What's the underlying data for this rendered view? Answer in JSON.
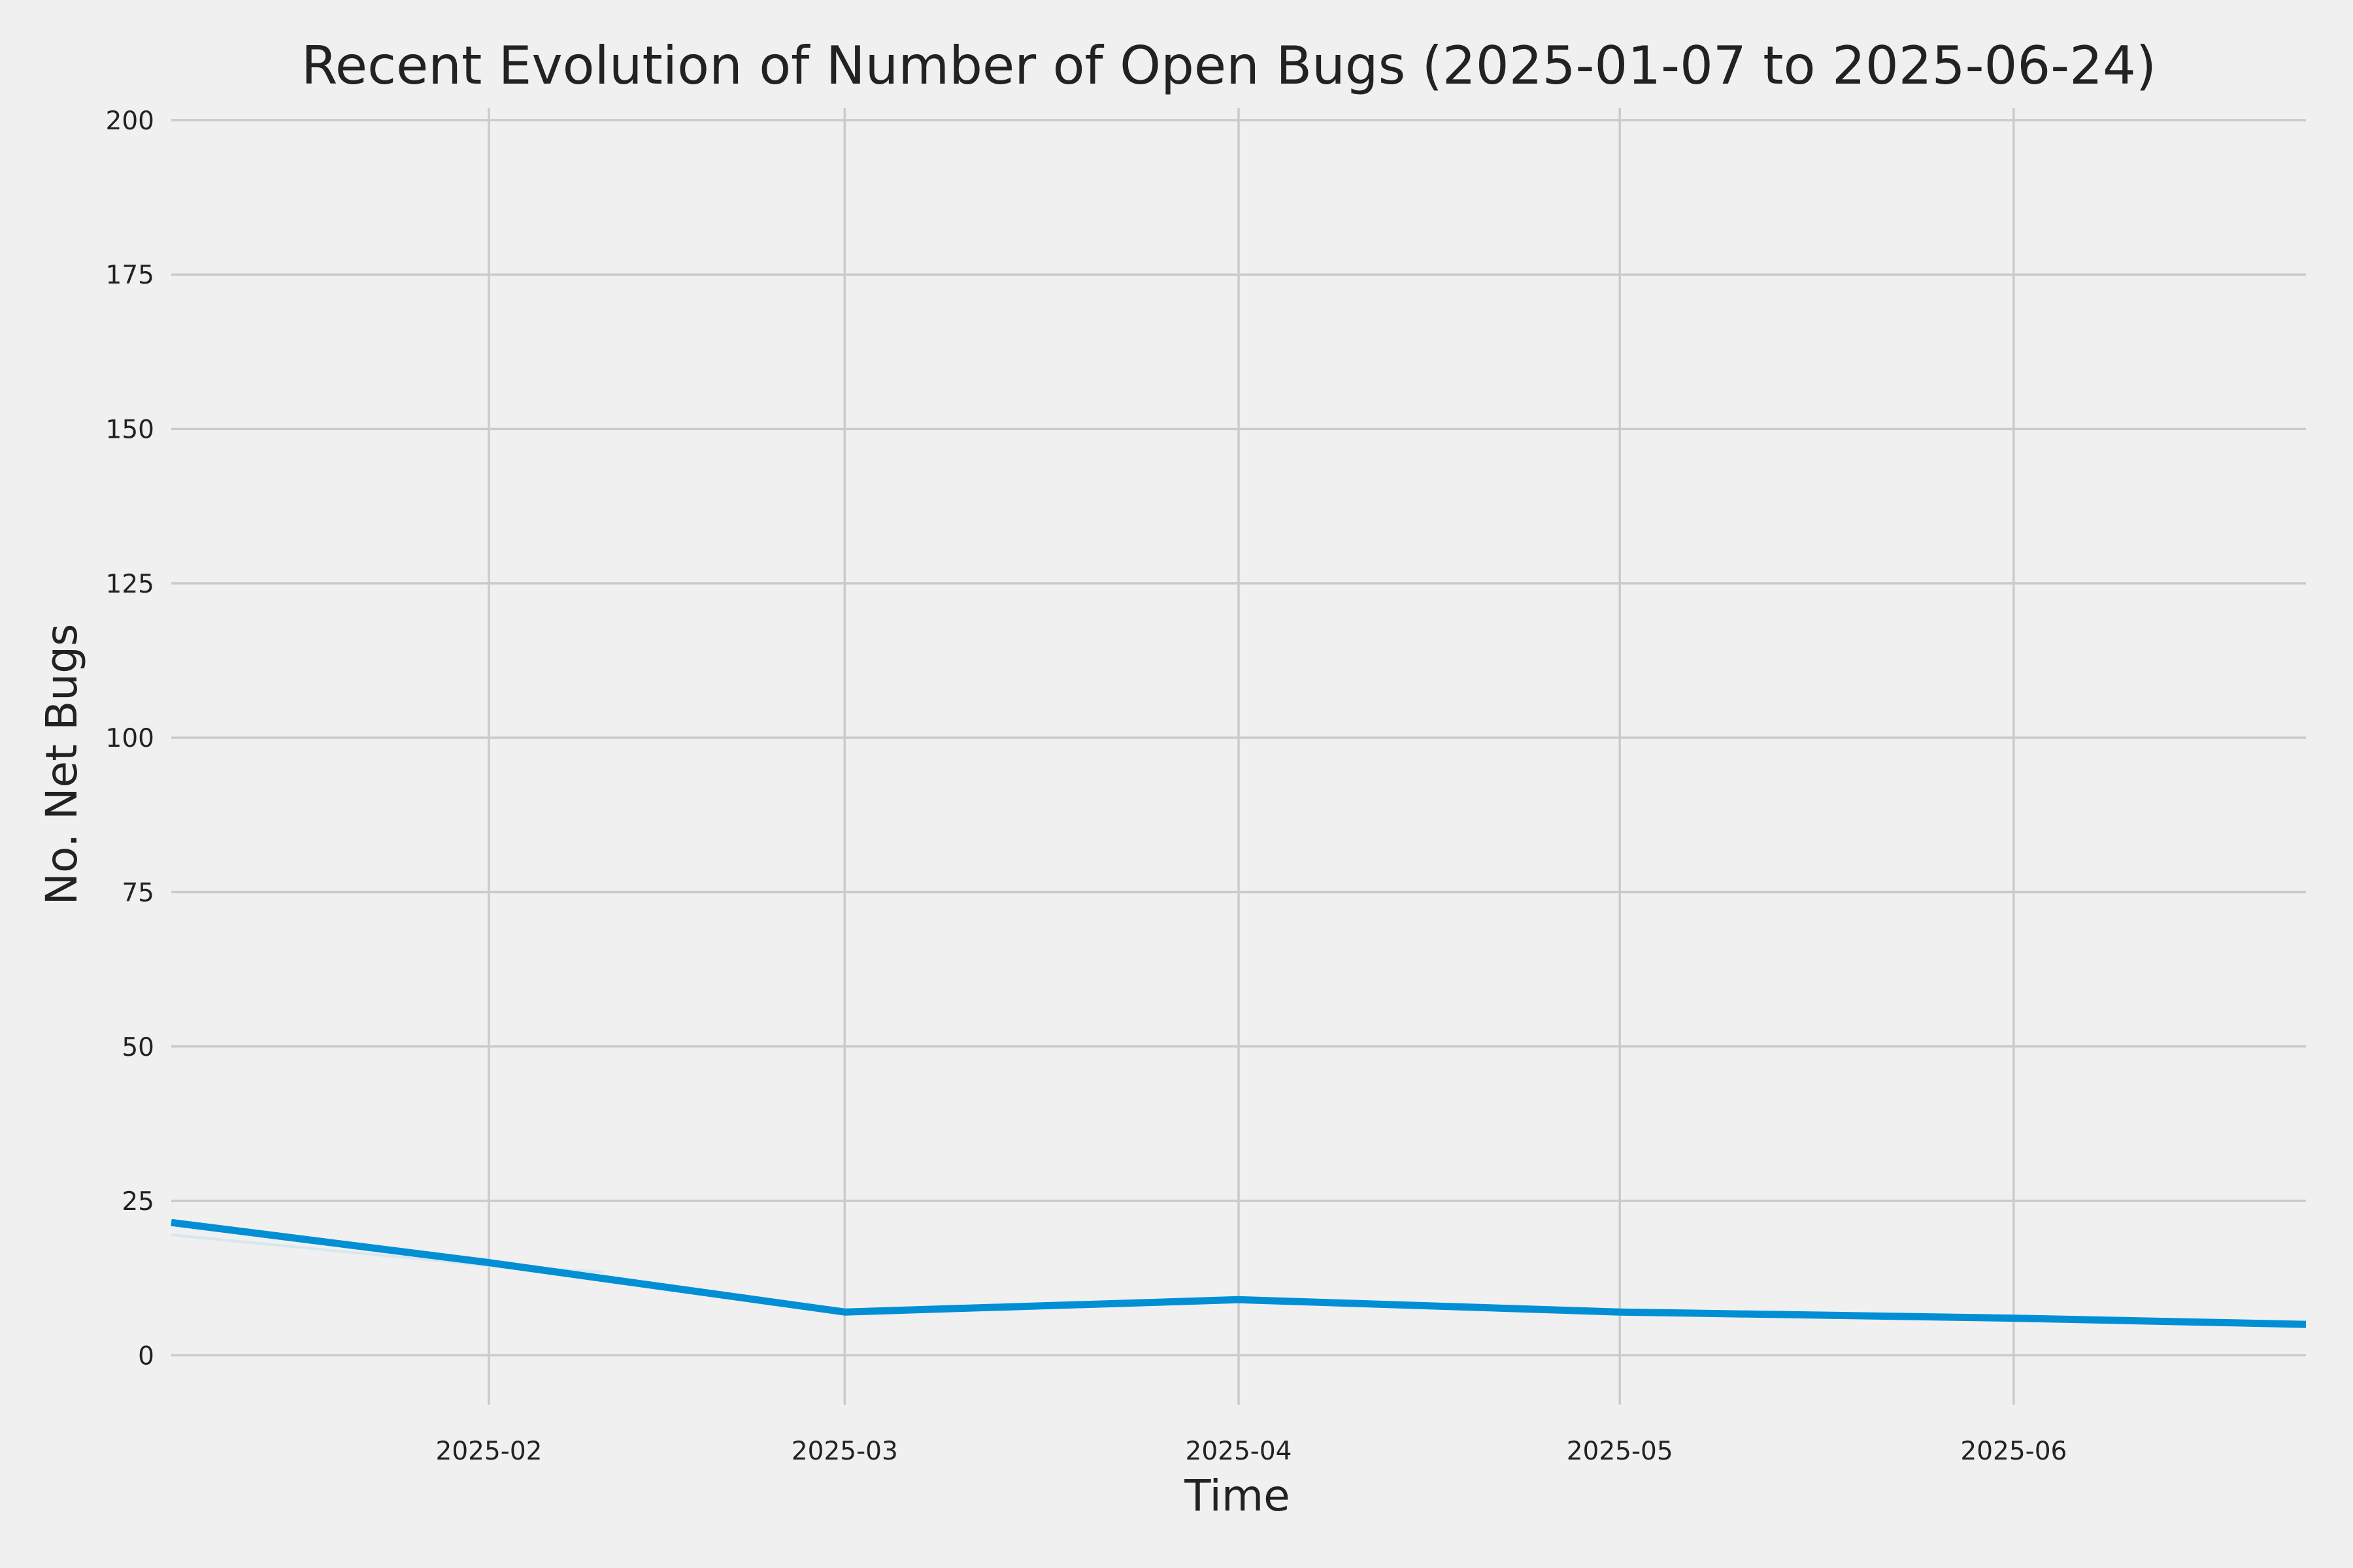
{
  "chart_data": {
    "type": "line",
    "title": "Recent Evolution of Number of Open Bugs (2025-01-07 to 2025-06-24)",
    "xlabel": "Time",
    "ylabel": "No. Net Bugs",
    "xlim": [
      "2025-01-07",
      "2025-06-24"
    ],
    "ylim": [
      -8,
      202
    ],
    "grid": true,
    "x_ticks": [
      "2025-02-01",
      "2025-03-01",
      "2025-04-01",
      "2025-05-01",
      "2025-06-01"
    ],
    "x_tick_labels": [
      "2025-02",
      "2025-03",
      "2025-04",
      "2025-05",
      "2025-06"
    ],
    "y_ticks": [
      0,
      25,
      50,
      75,
      100,
      125,
      150,
      175,
      200
    ],
    "y_tick_labels": [
      "0",
      "25",
      "50",
      "75",
      "100",
      "125",
      "150",
      "175",
      "200"
    ],
    "series": [
      {
        "color": "#008fd5",
        "x": [
          "2025-01-07",
          "2025-02-01",
          "2025-03-01",
          "2025-04-01",
          "2025-05-01",
          "2025-06-01",
          "2025-06-24"
        ],
        "values": [
          21.5,
          15,
          7,
          9,
          7,
          6,
          5
        ]
      }
    ],
    "secondary_series": [
      {
        "color": "#a8d8ef",
        "x": [
          "2025-01-07",
          "2025-02-01",
          "2025-02-10"
        ],
        "values": [
          19.5,
          14.5,
          13.5
        ]
      }
    ]
  }
}
